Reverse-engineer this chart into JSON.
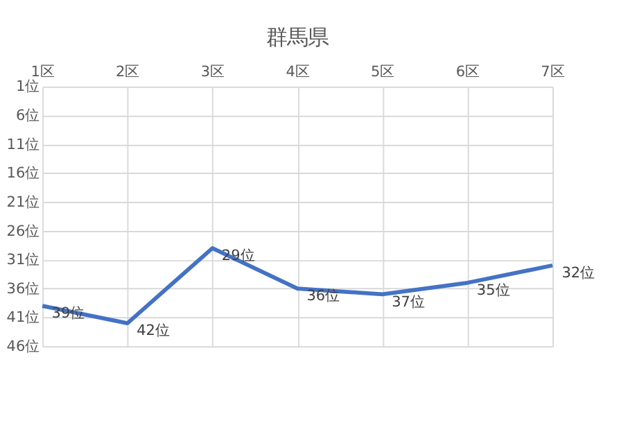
{
  "chart_data": {
    "type": "line",
    "title": "群馬県",
    "categories": [
      "1区",
      "2区",
      "3区",
      "4区",
      "5区",
      "6区",
      "7区"
    ],
    "values": [
      39,
      42,
      29,
      36,
      37,
      35,
      32
    ],
    "value_labels": [
      "39位",
      "42位",
      "29位",
      "36位",
      "37位",
      "35位",
      "32位"
    ],
    "color": "#4472c4",
    "ylim": [
      46,
      1
    ],
    "yticks": [
      {
        "value": 1,
        "label": "1位"
      },
      {
        "value": 6,
        "label": "6位"
      },
      {
        "value": 11,
        "label": "11位"
      },
      {
        "value": 16,
        "label": "16位"
      },
      {
        "value": 21,
        "label": "21位"
      },
      {
        "value": 26,
        "label": "26位"
      },
      {
        "value": 31,
        "label": "31位"
      },
      {
        "value": 36,
        "label": "36位"
      },
      {
        "value": 41,
        "label": "41位"
      },
      {
        "value": 46,
        "label": "46位"
      }
    ],
    "grid": true,
    "marker": "none",
    "line_style": "solid"
  }
}
